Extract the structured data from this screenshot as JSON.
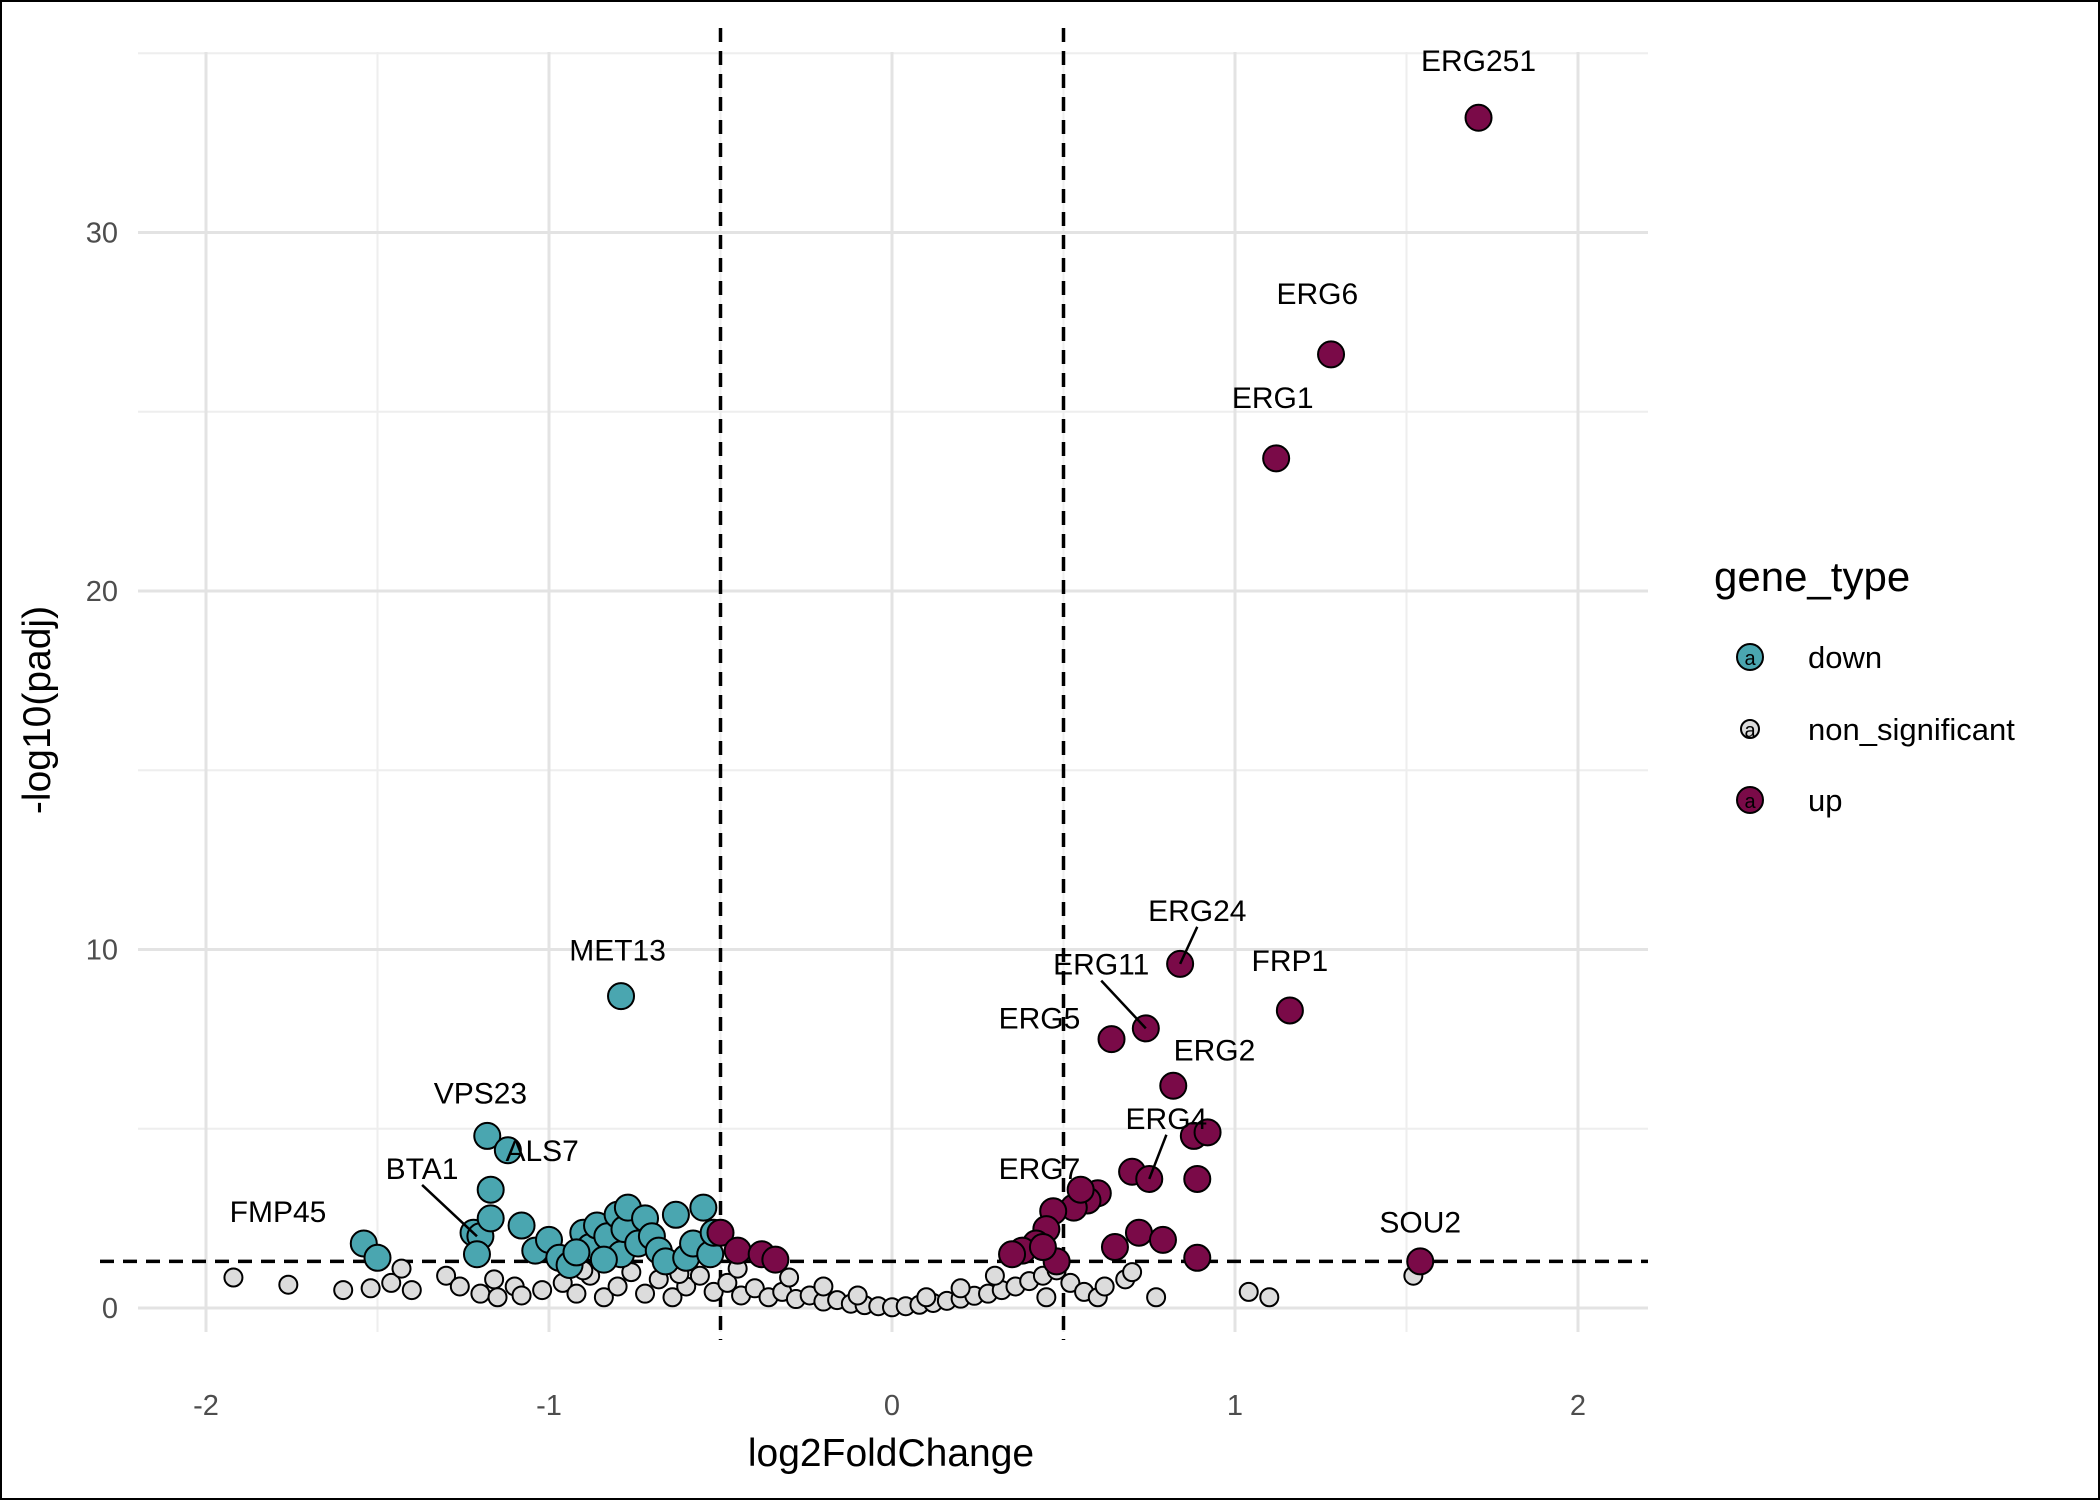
{
  "colors": {
    "down": "#4aa6b0",
    "non_significant": "#dcdcdc",
    "up": "#7a0a48",
    "stroke": "#000000",
    "grid_major": "#e3e3e3",
    "grid_minor": "#eeeeee"
  },
  "chart_data": {
    "type": "scatter",
    "title": "",
    "xlabel": "log2FoldChange",
    "ylabel": "-log10(padj)",
    "xlim": [
      -2.2,
      2.2
    ],
    "ylim": [
      -1.5,
      35
    ],
    "x_ticks": [
      -2,
      -1,
      0,
      1,
      2
    ],
    "x_tick_labels": [
      "-2",
      "-1",
      "0",
      "1",
      "2"
    ],
    "y_ticks": [
      0,
      10,
      20,
      30
    ],
    "y_tick_labels": [
      "0",
      "10",
      "20",
      "30"
    ],
    "grid": true,
    "reference_lines": {
      "vertical": [
        -0.5,
        0.5
      ],
      "horizontal": [
        1.3
      ]
    },
    "legend": {
      "title": "gene_type",
      "position": "right",
      "entries": [
        "down",
        "non_significant",
        "up"
      ]
    },
    "series": [
      {
        "name": "down",
        "points": [
          [
            -1.54,
            1.8
          ],
          [
            -1.5,
            1.4
          ],
          [
            -1.22,
            2.1
          ],
          [
            -1.2,
            2.0
          ],
          [
            -1.17,
            2.5
          ],
          [
            -1.21,
            1.5
          ],
          [
            -1.18,
            4.8
          ],
          [
            -1.12,
            4.4
          ],
          [
            -1.17,
            3.3
          ],
          [
            -1.08,
            2.3
          ],
          [
            -1.04,
            1.6
          ],
          [
            -1.0,
            1.9
          ],
          [
            -0.97,
            1.4
          ],
          [
            -0.94,
            1.2
          ],
          [
            -0.9,
            2.1
          ],
          [
            -0.88,
            1.7
          ],
          [
            -0.86,
            2.3
          ],
          [
            -0.83,
            2.0
          ],
          [
            -0.8,
            2.6
          ],
          [
            -0.79,
            1.5
          ],
          [
            -0.78,
            2.2
          ],
          [
            -0.77,
            2.8
          ],
          [
            -0.74,
            1.8
          ],
          [
            -0.72,
            2.5
          ],
          [
            -0.7,
            2.0
          ],
          [
            -0.68,
            1.6
          ],
          [
            -0.66,
            1.3
          ],
          [
            -0.63,
            2.6
          ],
          [
            -0.6,
            1.4
          ],
          [
            -0.58,
            1.8
          ],
          [
            -0.55,
            2.8
          ],
          [
            -0.53,
            1.5
          ],
          [
            -0.52,
            2.1
          ],
          [
            -0.79,
            8.7
          ],
          [
            -0.92,
            1.55
          ],
          [
            -0.84,
            1.35
          ]
        ]
      },
      {
        "name": "non_significant",
        "points": [
          [
            -1.92,
            0.85
          ],
          [
            -1.76,
            0.65
          ],
          [
            -1.6,
            0.5
          ],
          [
            -1.52,
            0.55
          ],
          [
            -1.46,
            0.7
          ],
          [
            -1.43,
            1.1
          ],
          [
            -1.4,
            0.5
          ],
          [
            -1.3,
            0.9
          ],
          [
            -1.26,
            0.6
          ],
          [
            -1.2,
            0.4
          ],
          [
            -1.15,
            0.3
          ],
          [
            -1.1,
            0.6
          ],
          [
            -1.08,
            0.35
          ],
          [
            -1.02,
            0.5
          ],
          [
            -0.96,
            0.7
          ],
          [
            -0.92,
            0.4
          ],
          [
            -0.88,
            0.9
          ],
          [
            -0.84,
            0.3
          ],
          [
            -0.8,
            0.6
          ],
          [
            -0.76,
            1.0
          ],
          [
            -0.72,
            0.4
          ],
          [
            -0.68,
            0.8
          ],
          [
            -0.64,
            0.3
          ],
          [
            -0.6,
            0.6
          ],
          [
            -0.56,
            0.9
          ],
          [
            -0.52,
            0.45
          ],
          [
            -0.48,
            0.7
          ],
          [
            -0.44,
            0.35
          ],
          [
            -0.4,
            0.55
          ],
          [
            -0.36,
            0.3
          ],
          [
            -0.32,
            0.45
          ],
          [
            -0.28,
            0.25
          ],
          [
            -0.24,
            0.35
          ],
          [
            -0.2,
            0.18
          ],
          [
            -0.16,
            0.22
          ],
          [
            -0.12,
            0.12
          ],
          [
            -0.08,
            0.08
          ],
          [
            -0.04,
            0.05
          ],
          [
            0.0,
            0.02
          ],
          [
            0.04,
            0.05
          ],
          [
            0.08,
            0.09
          ],
          [
            0.12,
            0.14
          ],
          [
            0.16,
            0.2
          ],
          [
            0.2,
            0.26
          ],
          [
            0.24,
            0.34
          ],
          [
            0.28,
            0.4
          ],
          [
            0.32,
            0.5
          ],
          [
            0.36,
            0.6
          ],
          [
            0.4,
            0.75
          ],
          [
            0.44,
            0.9
          ],
          [
            0.48,
            1.05
          ],
          [
            0.52,
            0.7
          ],
          [
            0.56,
            0.45
          ],
          [
            0.6,
            0.3
          ],
          [
            0.62,
            0.6
          ],
          [
            0.68,
            0.8
          ],
          [
            0.7,
            1.0
          ],
          [
            0.77,
            0.3
          ],
          [
            1.04,
            0.45
          ],
          [
            1.1,
            0.3
          ],
          [
            1.52,
            0.9
          ],
          [
            0.3,
            0.9
          ],
          [
            -0.3,
            0.85
          ],
          [
            0.2,
            0.55
          ],
          [
            -0.2,
            0.6
          ],
          [
            0.1,
            0.3
          ],
          [
            -0.1,
            0.35
          ],
          [
            0.45,
            0.3
          ],
          [
            -0.45,
            1.1
          ],
          [
            -0.62,
            0.95
          ],
          [
            -0.9,
            1.05
          ],
          [
            -1.16,
            0.8
          ]
        ]
      },
      {
        "name": "up",
        "points": [
          [
            1.71,
            33.2
          ],
          [
            1.28,
            26.6
          ],
          [
            1.12,
            23.7
          ],
          [
            0.84,
            9.6
          ],
          [
            1.16,
            8.3
          ],
          [
            0.74,
            7.8
          ],
          [
            0.64,
            7.5
          ],
          [
            0.82,
            6.2
          ],
          [
            0.88,
            4.8
          ],
          [
            0.92,
            4.9
          ],
          [
            0.7,
            3.8
          ],
          [
            0.75,
            3.6
          ],
          [
            0.89,
            3.6
          ],
          [
            0.6,
            3.2
          ],
          [
            0.57,
            3.0
          ],
          [
            0.53,
            2.8
          ],
          [
            0.55,
            3.3
          ],
          [
            0.47,
            2.7
          ],
          [
            0.45,
            2.2
          ],
          [
            0.42,
            1.8
          ],
          [
            0.38,
            1.6
          ],
          [
            0.35,
            1.5
          ],
          [
            0.65,
            1.7
          ],
          [
            0.72,
            2.1
          ],
          [
            0.79,
            1.9
          ],
          [
            0.89,
            1.4
          ],
          [
            1.54,
            1.3
          ],
          [
            -0.5,
            2.1
          ],
          [
            -0.45,
            1.6
          ],
          [
            -0.38,
            1.5
          ],
          [
            -0.34,
            1.35
          ],
          [
            0.48,
            1.3
          ],
          [
            0.44,
            1.7
          ]
        ]
      }
    ],
    "annotations": [
      {
        "text": "ERG251",
        "x": 1.71,
        "y": 33.2,
        "tx": 1.71,
        "ty": 34.5,
        "line": false
      },
      {
        "text": "ERG6",
        "x": 1.28,
        "y": 26.6,
        "tx": 1.24,
        "ty": 28.0,
        "line": false
      },
      {
        "text": "ERG1",
        "x": 1.12,
        "y": 23.7,
        "tx": 1.11,
        "ty": 25.1,
        "line": false
      },
      {
        "text": "ERG24",
        "x": 0.84,
        "y": 9.6,
        "tx": 0.89,
        "ty": 10.8,
        "line": true
      },
      {
        "text": "ERG11",
        "x": 0.74,
        "y": 7.8,
        "tx": 0.61,
        "ty": 9.3,
        "line": true
      },
      {
        "text": "FRP1",
        "x": 1.16,
        "y": 8.3,
        "tx": 1.16,
        "ty": 9.4,
        "line": false
      },
      {
        "text": "ERG5",
        "x": 0.64,
        "y": 7.5,
        "tx": 0.43,
        "ty": 7.8,
        "line": false
      },
      {
        "text": "ERG2",
        "x": 0.82,
        "y": 6.2,
        "tx": 0.94,
        "ty": 6.9,
        "line": false
      },
      {
        "text": "ERG4",
        "x": 0.75,
        "y": 3.6,
        "tx": 0.8,
        "ty": 5.0,
        "line": true
      },
      {
        "text": "ERG7",
        "x": 0.53,
        "y": 2.8,
        "tx": 0.43,
        "ty": 3.6,
        "line": false
      },
      {
        "text": "SOU2",
        "x": 1.54,
        "y": 1.3,
        "tx": 1.54,
        "ty": 2.1,
        "line": false
      },
      {
        "text": "MET13",
        "x": -0.79,
        "y": 8.7,
        "tx": -0.8,
        "ty": 9.7,
        "line": false
      },
      {
        "text": "VPS23",
        "x": -1.18,
        "y": 4.8,
        "tx": -1.2,
        "ty": 5.7,
        "line": false
      },
      {
        "text": "ALS7",
        "x": -1.12,
        "y": 4.4,
        "tx": -1.02,
        "ty": 4.1,
        "line": false
      },
      {
        "text": "BTA1",
        "x": -1.21,
        "y": 2.0,
        "tx": -1.37,
        "ty": 3.6,
        "line": true
      },
      {
        "text": "FMP45",
        "x": -1.54,
        "y": 1.8,
        "tx": -1.79,
        "ty": 2.4,
        "line": false
      }
    ]
  }
}
